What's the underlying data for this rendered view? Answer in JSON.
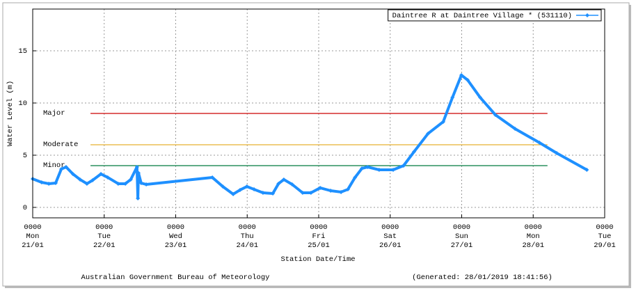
{
  "chart_data": {
    "type": "line",
    "ylabel": "Water Level (m)",
    "xlabel": "Station Date/Time",
    "footer_left": "Australian Government Bureau of Meteorology",
    "footer_right": "(Generated: 28/01/2019 18:41:56)",
    "xlim": [
      0,
      192
    ],
    "ylim": [
      -1,
      19
    ],
    "yticks": [
      0,
      5,
      10,
      15
    ],
    "xticks": [
      {
        "value": 0,
        "label": "0000\nMon\n21/01"
      },
      {
        "value": 24,
        "label": "0000\nTue\n22/01"
      },
      {
        "value": 48,
        "label": "0000\nWed\n23/01"
      },
      {
        "value": 72,
        "label": "0000\nThu\n24/01"
      },
      {
        "value": 96,
        "label": "0000\nFri\n25/01"
      },
      {
        "value": 120,
        "label": "0000\nSat\n26/01"
      },
      {
        "value": 144,
        "label": "0000\nSun\n27/01"
      },
      {
        "value": 168,
        "label": "0000\nMon\n28/01"
      },
      {
        "value": 192,
        "label": "0000\nTue\n29/01"
      }
    ],
    "grid": true,
    "legend": "top-right",
    "thresholds": [
      {
        "label": "Major",
        "value": 9,
        "color": "#cc0000",
        "x_range": [
          19.4,
          172.8
        ]
      },
      {
        "label": "Moderate",
        "value": 6,
        "color": "#e8b030",
        "x_range": [
          19.4,
          172.8
        ]
      },
      {
        "label": "Minor",
        "value": 4,
        "color": "#007a3d",
        "x_range": [
          19.4,
          172.8
        ]
      }
    ],
    "series": [
      {
        "name": "Daintree R at Daintree Village * (531110)",
        "color": "#1e90ff",
        "x": [
          0,
          3.0,
          5.4,
          7.7,
          9.6,
          11.2,
          13.5,
          15.9,
          18.2,
          20.1,
          22.9,
          25.2,
          28.7,
          31.1,
          32.9,
          35.0,
          35.3,
          35.5,
          36.4,
          38.1,
          60.3,
          63.8,
          67.3,
          69.6,
          71.9,
          74.3,
          77.3,
          80.6,
          82.5,
          84.3,
          87.1,
          90.6,
          93.4,
          96.5,
          100.0,
          103.5,
          105.8,
          108.2,
          110.5,
          112.4,
          116.3,
          121.0,
          124.5,
          128.0,
          132.7,
          137.8,
          140.9,
          143.9,
          146.0,
          150.2,
          155.3,
          161.9,
          170.1,
          175.9,
          186.0
        ],
        "values": [
          2.73,
          2.4,
          2.27,
          2.33,
          3.67,
          3.87,
          3.2,
          2.67,
          2.27,
          2.6,
          3.2,
          2.87,
          2.27,
          2.27,
          2.67,
          3.87,
          0.87,
          3.3,
          2.33,
          2.2,
          2.87,
          2.0,
          1.27,
          1.67,
          2.0,
          1.73,
          1.4,
          1.33,
          2.27,
          2.67,
          2.2,
          1.4,
          1.4,
          1.87,
          1.6,
          1.47,
          1.73,
          2.87,
          3.73,
          3.87,
          3.6,
          3.6,
          4.0,
          5.33,
          7.07,
          8.2,
          10.53,
          12.67,
          12.2,
          10.53,
          8.87,
          7.53,
          6.2,
          5.2,
          3.6
        ]
      }
    ]
  }
}
